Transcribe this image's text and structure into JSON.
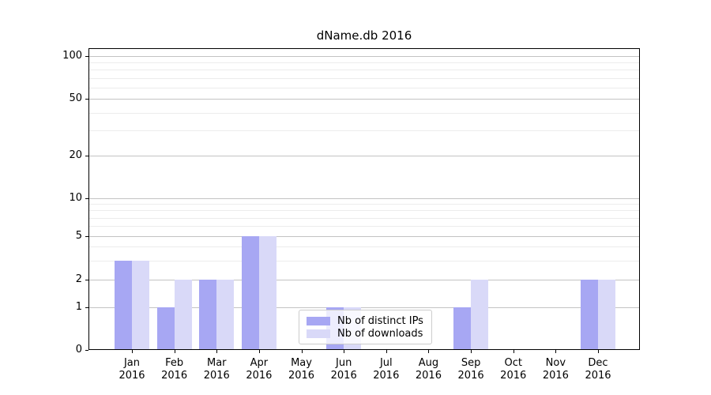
{
  "chart_data": {
    "type": "bar",
    "title": "dName.db 2016",
    "categories": [
      {
        "month": "Jan",
        "year": "2016"
      },
      {
        "month": "Feb",
        "year": "2016"
      },
      {
        "month": "Mar",
        "year": "2016"
      },
      {
        "month": "Apr",
        "year": "2016"
      },
      {
        "month": "May",
        "year": "2016"
      },
      {
        "month": "Jun",
        "year": "2016"
      },
      {
        "month": "Jul",
        "year": "2016"
      },
      {
        "month": "Aug",
        "year": "2016"
      },
      {
        "month": "Sep",
        "year": "2016"
      },
      {
        "month": "Oct",
        "year": "2016"
      },
      {
        "month": "Nov",
        "year": "2016"
      },
      {
        "month": "Dec",
        "year": "2016"
      }
    ],
    "series": [
      {
        "name": "Nb of distinct IPs",
        "color": "#a7a7f3",
        "values": [
          3,
          1,
          2,
          5,
          0,
          1,
          0,
          0,
          1,
          0,
          0,
          2
        ]
      },
      {
        "name": "Nb of downloads",
        "color": "#d9d9f8",
        "values": [
          3,
          2,
          2,
          5,
          0,
          1,
          0,
          0,
          2,
          0,
          0,
          2
        ]
      }
    ],
    "y_axis": {
      "scale": "log-like",
      "ticks": [
        0,
        1,
        2,
        5,
        10,
        20,
        50,
        100
      ],
      "minor_ticks": [
        3,
        4,
        6,
        7,
        8,
        9,
        30,
        40,
        60,
        70,
        80,
        90
      ]
    },
    "legend": {
      "position": "lower center"
    },
    "grid": true,
    "colors": {
      "major_grid": "#c3c3c3",
      "minor_grid": "#ececec",
      "spine": "#000000",
      "background": "#ffffff"
    }
  }
}
